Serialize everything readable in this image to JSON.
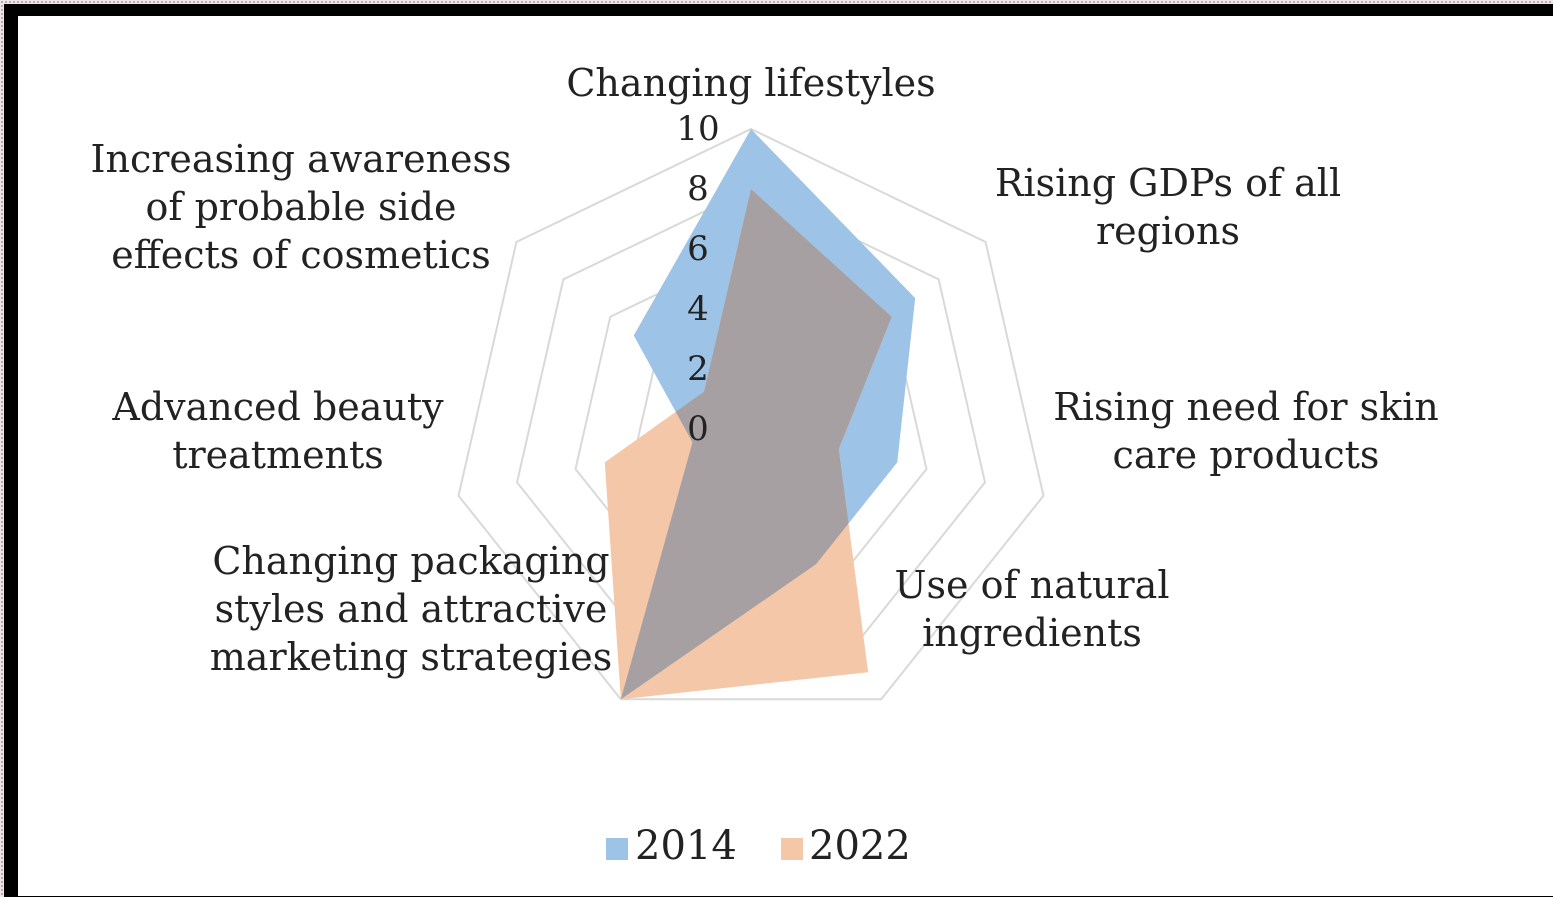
{
  "chart_data": {
    "type": "radar",
    "categories": [
      [
        "Changing lifestyles"
      ],
      [
        "Rising GDPs of all",
        "regions"
      ],
      [
        "Rising need for skin",
        "care products"
      ],
      [
        "Use of natural",
        "ingredients"
      ],
      [
        "Changing packaging",
        "styles and attractive",
        "marketing strategies"
      ],
      [
        "Advanced beauty",
        "treatments"
      ],
      [
        "Increasing awareness",
        "of probable side",
        "effects of cosmetics"
      ]
    ],
    "rlim": [
      0,
      10
    ],
    "ticks": [
      "0",
      "2",
      "4",
      "6",
      "8",
      "10"
    ],
    "series": [
      {
        "name": "2014",
        "color": "#9dc3e6",
        "values": [
          10,
          7,
          5,
          5,
          10,
          2,
          5
        ]
      },
      {
        "name": "2022",
        "color": "#f4c7a9",
        "values": [
          8,
          6,
          3,
          9,
          10,
          5,
          2
        ]
      }
    ],
    "overlap_color": "#a6a0a3",
    "grid_color": "#d9d9d9",
    "legend_position": "bottom"
  }
}
